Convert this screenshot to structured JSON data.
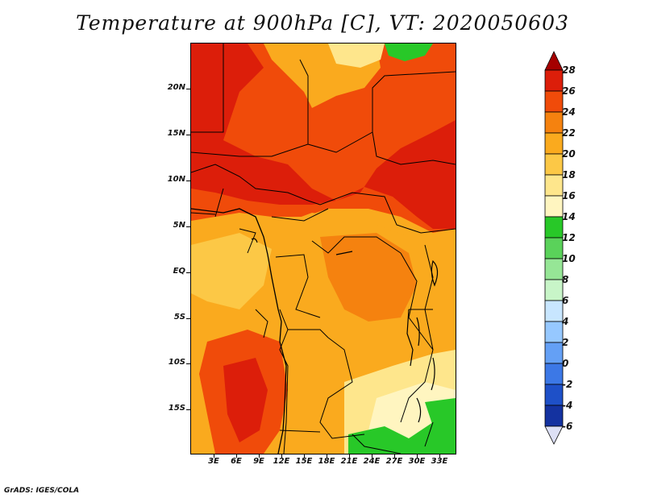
{
  "title": "Temperature at 900hPa [C], VT: 2020050603",
  "footer": "GrADS: IGES/COLA",
  "lat_labels": [
    "20N",
    "15N",
    "10N",
    "5N",
    "EQ",
    "5S",
    "10S",
    "15S"
  ],
  "lon_labels": [
    "3E",
    "6E",
    "9E",
    "12E",
    "15E",
    "18E",
    "21E",
    "24E",
    "27E",
    "30E",
    "33E"
  ],
  "colorbar": {
    "labels": [
      "28",
      "26",
      "24",
      "22",
      "20",
      "18",
      "16",
      "14",
      "12",
      "10",
      "8",
      "6",
      "4",
      "2",
      "0",
      "-2",
      "-4",
      "-6"
    ],
    "colors": [
      "#a50000",
      "#dc1e0a",
      "#f04b0a",
      "#f5820f",
      "#faaa1e",
      "#fcc846",
      "#fee68c",
      "#fff5c0",
      "#28c828",
      "#5ad25a",
      "#96e696",
      "#c8f5c8",
      "#c8e6ff",
      "#96c8ff",
      "#64a0f5",
      "#3c78e6",
      "#1e50c8",
      "#1432a0",
      "#0a1478"
    ]
  },
  "palette": {
    "c16": "#fff5c0",
    "c18": "#fee68c",
    "c20": "#fcc846",
    "c22": "#faaa1e",
    "c24": "#f5820f",
    "c26": "#f04b0a",
    "c28": "#dc1e0a",
    "green": "#28c828",
    "green2": "#5ad25a"
  }
}
